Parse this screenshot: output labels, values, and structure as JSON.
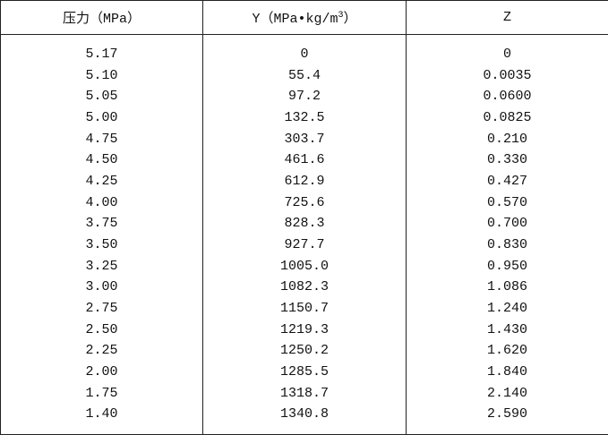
{
  "table": {
    "header": [
      "压力（MPa）",
      {
        "text": "Y（MPa•kg/m",
        "superscript": "3",
        "close": "）"
      },
      "Z"
    ],
    "rows": [
      [
        "5.17",
        "0",
        "0"
      ],
      [
        "5.10",
        "55.4",
        "0.0035"
      ],
      [
        "5.05",
        "97.2",
        "0.0600"
      ],
      [
        "5.00",
        "132.5",
        "0.0825"
      ],
      [
        "4.75",
        "303.7",
        "0.210"
      ],
      [
        "4.50",
        "461.6",
        "0.330"
      ],
      [
        "4.25",
        "612.9",
        "0.427"
      ],
      [
        "4.00",
        "725.6",
        "0.570"
      ],
      [
        "3.75",
        "828.3",
        "0.700"
      ],
      [
        "3.50",
        "927.7",
        "0.830"
      ],
      [
        "3.25",
        "1005.0",
        "0.950"
      ],
      [
        "3.00",
        "1082.3",
        "1.086"
      ],
      [
        "2.75",
        "1150.7",
        "1.240"
      ],
      [
        "2.50",
        "1219.3",
        "1.430"
      ],
      [
        "2.25",
        "1250.2",
        "1.620"
      ],
      [
        "2.00",
        "1285.5",
        "1.840"
      ],
      [
        "1.75",
        "1318.7",
        "2.140"
      ],
      [
        "1.40",
        "1340.8",
        "2.590"
      ]
    ]
  }
}
